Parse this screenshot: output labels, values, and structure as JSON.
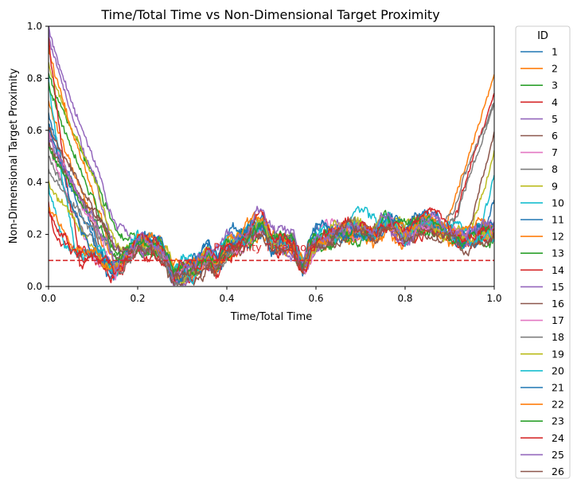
{
  "chart_data": {
    "type": "line",
    "title": "Time/Total Time vs Non-Dimensional Target Proximity",
    "xlabel": "Time/Total Time",
    "ylabel": "Non-Dimensional Target Proximity",
    "xlim": [
      0,
      1
    ],
    "ylim": [
      0,
      1
    ],
    "xticks": [
      "0.0",
      "0.2",
      "0.4",
      "0.6",
      "0.8",
      "1.0"
    ],
    "yticks": [
      "0.0",
      "0.2",
      "0.4",
      "0.6",
      "0.8",
      "1.0"
    ],
    "grid": false,
    "legend": {
      "title": "ID",
      "placement": "outside-right"
    },
    "threshold": {
      "label": "Proximity Threshold",
      "y": 0.1,
      "color": "#d62728"
    },
    "common_profile": {
      "x": [
        0.0,
        0.05,
        0.1,
        0.15,
        0.18,
        0.2,
        0.25,
        0.28,
        0.3,
        0.33,
        0.36,
        0.38,
        0.4,
        0.45,
        0.48,
        0.5,
        0.52,
        0.55,
        0.57,
        0.6,
        0.65,
        0.7,
        0.73,
        0.76,
        0.78,
        0.8,
        0.83,
        0.86,
        0.88,
        0.9,
        0.93,
        0.96,
        1.0
      ],
      "y": [
        0.15,
        0.12,
        0.11,
        0.05,
        0.12,
        0.17,
        0.15,
        0.04,
        0.05,
        0.07,
        0.12,
        0.09,
        0.15,
        0.2,
        0.24,
        0.18,
        0.17,
        0.15,
        0.07,
        0.17,
        0.2,
        0.22,
        0.2,
        0.25,
        0.22,
        0.2,
        0.23,
        0.24,
        0.22,
        0.2,
        0.18,
        0.2,
        0.21
      ]
    },
    "series": [
      {
        "name": "1",
        "color": "#1f77b4",
        "start": 0.66,
        "descent_end": 0.13,
        "rise_start": 1.0,
        "end": 0.2
      },
      {
        "name": "2",
        "color": "#ff7f0e",
        "start": 0.72,
        "descent_end": 0.14,
        "rise_start": 0.88,
        "end": 0.81
      },
      {
        "name": "3",
        "color": "#2ca02c",
        "start": 0.82,
        "descent_end": 0.2,
        "rise_start": 1.0,
        "end": 0.21
      },
      {
        "name": "4",
        "color": "#d62728",
        "start": 0.32,
        "descent_end": 0.02,
        "rise_start": 0.9,
        "end": 0.74
      },
      {
        "name": "5",
        "color": "#9467bd",
        "start": 0.97,
        "descent_end": 0.17,
        "rise_start": 1.0,
        "end": 0.2
      },
      {
        "name": "6",
        "color": "#8c564b",
        "start": 0.6,
        "descent_end": 0.14,
        "rise_start": 1.0,
        "end": 0.2
      },
      {
        "name": "7",
        "color": "#e377c2",
        "start": 0.55,
        "descent_end": 0.1,
        "rise_start": 1.0,
        "end": 0.15
      },
      {
        "name": "8",
        "color": "#7f7f7f",
        "start": 0.5,
        "descent_end": 0.12,
        "rise_start": 0.9,
        "end": 0.7
      },
      {
        "name": "9",
        "color": "#bcbd22",
        "start": 0.86,
        "descent_end": 0.18,
        "rise_start": 0.95,
        "end": 0.52
      },
      {
        "name": "10",
        "color": "#17becf",
        "start": 0.8,
        "descent_end": 0.06,
        "rise_start": 0.97,
        "end": 0.43
      },
      {
        "name": "11",
        "color": "#1f77b4",
        "start": 0.62,
        "descent_end": 0.11,
        "rise_start": 0.98,
        "end": 0.33
      },
      {
        "name": "12",
        "color": "#ff7f0e",
        "start": 0.92,
        "descent_end": 0.16,
        "rise_start": 1.0,
        "end": 0.17
      },
      {
        "name": "13",
        "color": "#2ca02c",
        "start": 0.78,
        "descent_end": 0.17,
        "rise_start": 1.0,
        "end": 0.19
      },
      {
        "name": "14",
        "color": "#d62728",
        "start": 0.96,
        "descent_end": 0.07,
        "rise_start": 1.0,
        "end": 0.17
      },
      {
        "name": "15",
        "color": "#9467bd",
        "start": 1.0,
        "descent_end": 0.2,
        "rise_start": 1.0,
        "end": 0.18
      },
      {
        "name": "16",
        "color": "#8c564b",
        "start": 0.55,
        "descent_end": 0.18,
        "rise_start": 0.94,
        "end": 0.59
      },
      {
        "name": "17",
        "color": "#e377c2",
        "start": 0.6,
        "descent_end": 0.15,
        "rise_start": 1.0,
        "end": 0.18
      },
      {
        "name": "18",
        "color": "#7f7f7f",
        "start": 0.45,
        "descent_end": 0.16,
        "rise_start": 0.88,
        "end": 0.71
      },
      {
        "name": "19",
        "color": "#bcbd22",
        "start": 0.4,
        "descent_end": 0.13,
        "rise_start": 1.0,
        "end": 0.16
      },
      {
        "name": "20",
        "color": "#17becf",
        "start": 0.38,
        "descent_end": 0.04,
        "rise_start": 1.0,
        "end": 0.15
      },
      {
        "name": "21",
        "color": "#1f77b4",
        "start": 0.64,
        "descent_end": 0.09,
        "rise_start": 1.0,
        "end": 0.18
      },
      {
        "name": "22",
        "color": "#ff7f0e",
        "start": 0.3,
        "descent_end": 0.08,
        "rise_start": 1.0,
        "end": 0.2
      },
      {
        "name": "23",
        "color": "#2ca02c",
        "start": 0.54,
        "descent_end": 0.16,
        "rise_start": 1.0,
        "end": 0.21
      },
      {
        "name": "24",
        "color": "#d62728",
        "start": 0.28,
        "descent_end": 0.05,
        "rise_start": 1.0,
        "end": 0.16
      },
      {
        "name": "25",
        "color": "#9467bd",
        "start": 0.58,
        "descent_end": 0.15,
        "rise_start": 1.0,
        "end": 0.19
      },
      {
        "name": "26",
        "color": "#8c564b",
        "start": 0.62,
        "descent_end": 0.19,
        "rise_start": 1.0,
        "end": 0.2
      }
    ]
  }
}
